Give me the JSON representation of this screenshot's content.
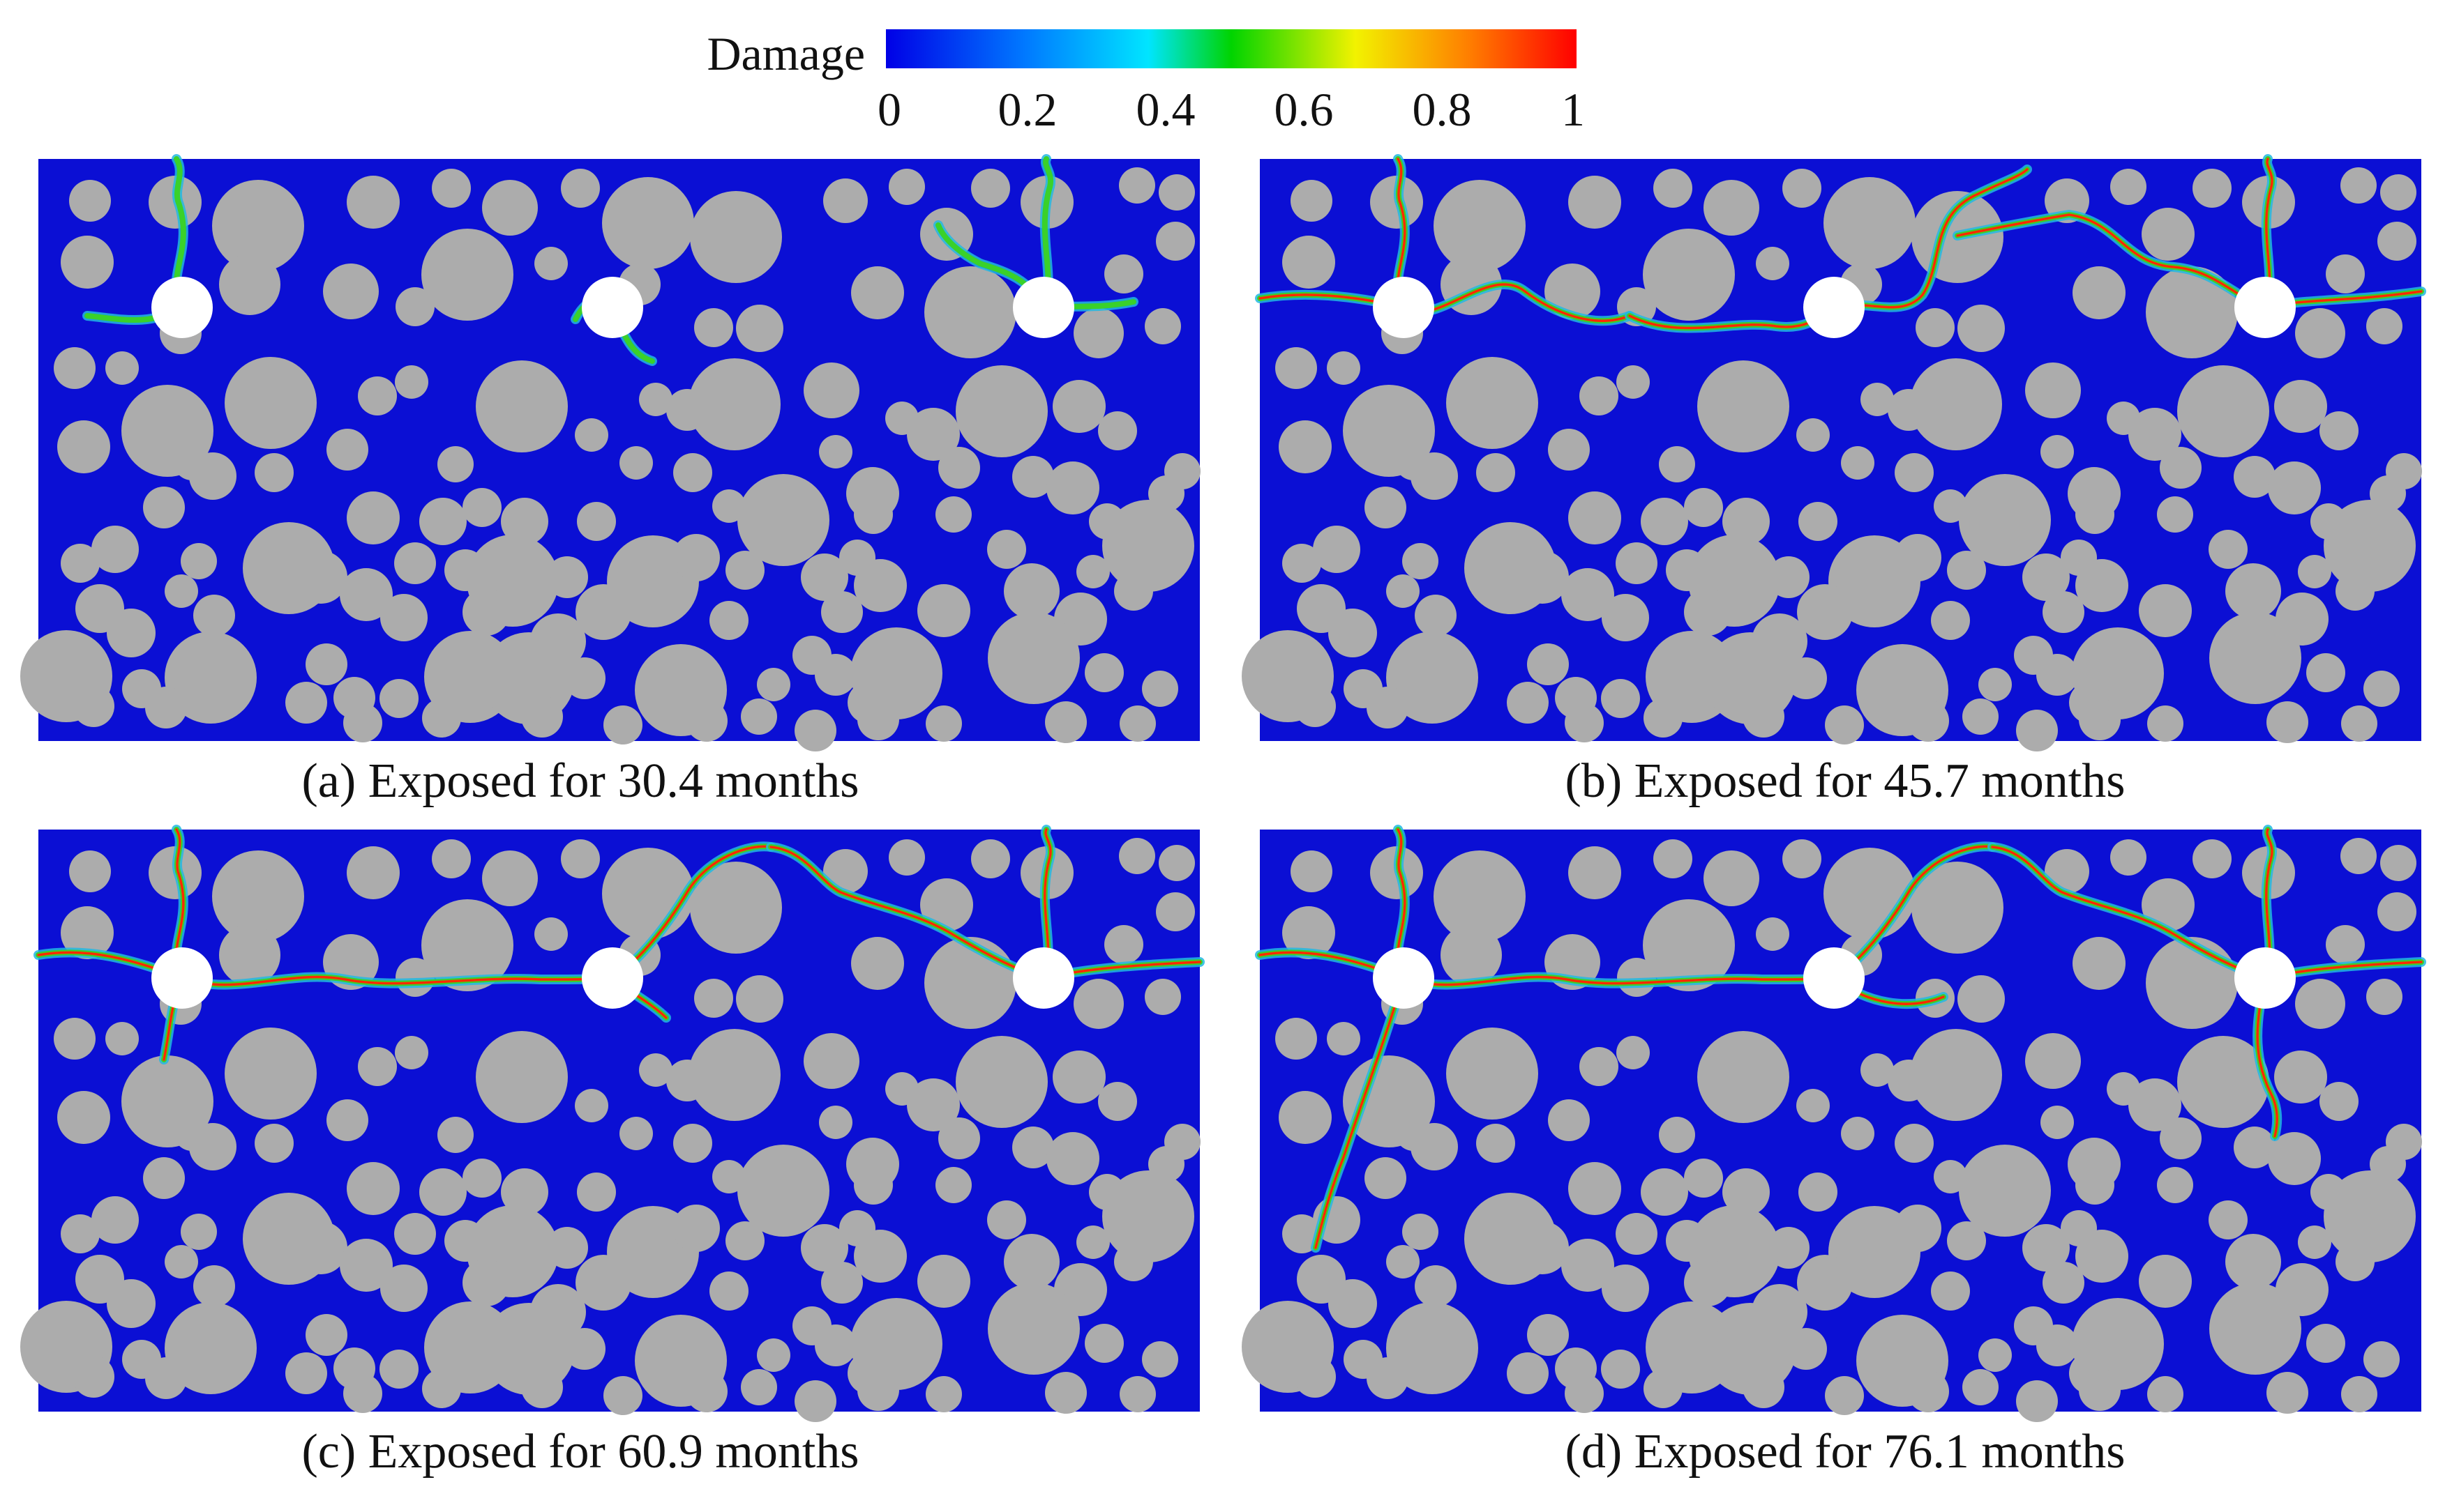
{
  "colorbar": {
    "title": "Damage",
    "ticks": [
      "0",
      "0.2",
      "0.4",
      "0.6",
      "0.8",
      "1"
    ],
    "tick_values": [
      0,
      0.2,
      0.4,
      0.6,
      0.8,
      1
    ],
    "range": [
      0,
      1
    ],
    "colors": [
      "#0000e6",
      "#0078ff",
      "#00e5ff",
      "#00d400",
      "#f2f200",
      "#ff7a00",
      "#ff0000"
    ]
  },
  "colors": {
    "matrix": "#0b0fd4",
    "aggregate": "#acacac",
    "hole": "#ffffff",
    "crack_outer": "#22b8e0",
    "crack_mid": "#3ad12a",
    "crack_core": "#ff2a00"
  },
  "panels": [
    {
      "id": "a",
      "caption": "(a) Exposed for 30.4 months",
      "exposure_months": 30.4
    },
    {
      "id": "b",
      "caption": "(b) Exposed for 45.7 months",
      "exposure_months": 45.7
    },
    {
      "id": "c",
      "caption": "(c) Exposed for 60.9 months",
      "exposure_months": 60.9
    },
    {
      "id": "d",
      "caption": "(d) Exposed for 76.1 months",
      "exposure_months": 76.1
    }
  ]
}
